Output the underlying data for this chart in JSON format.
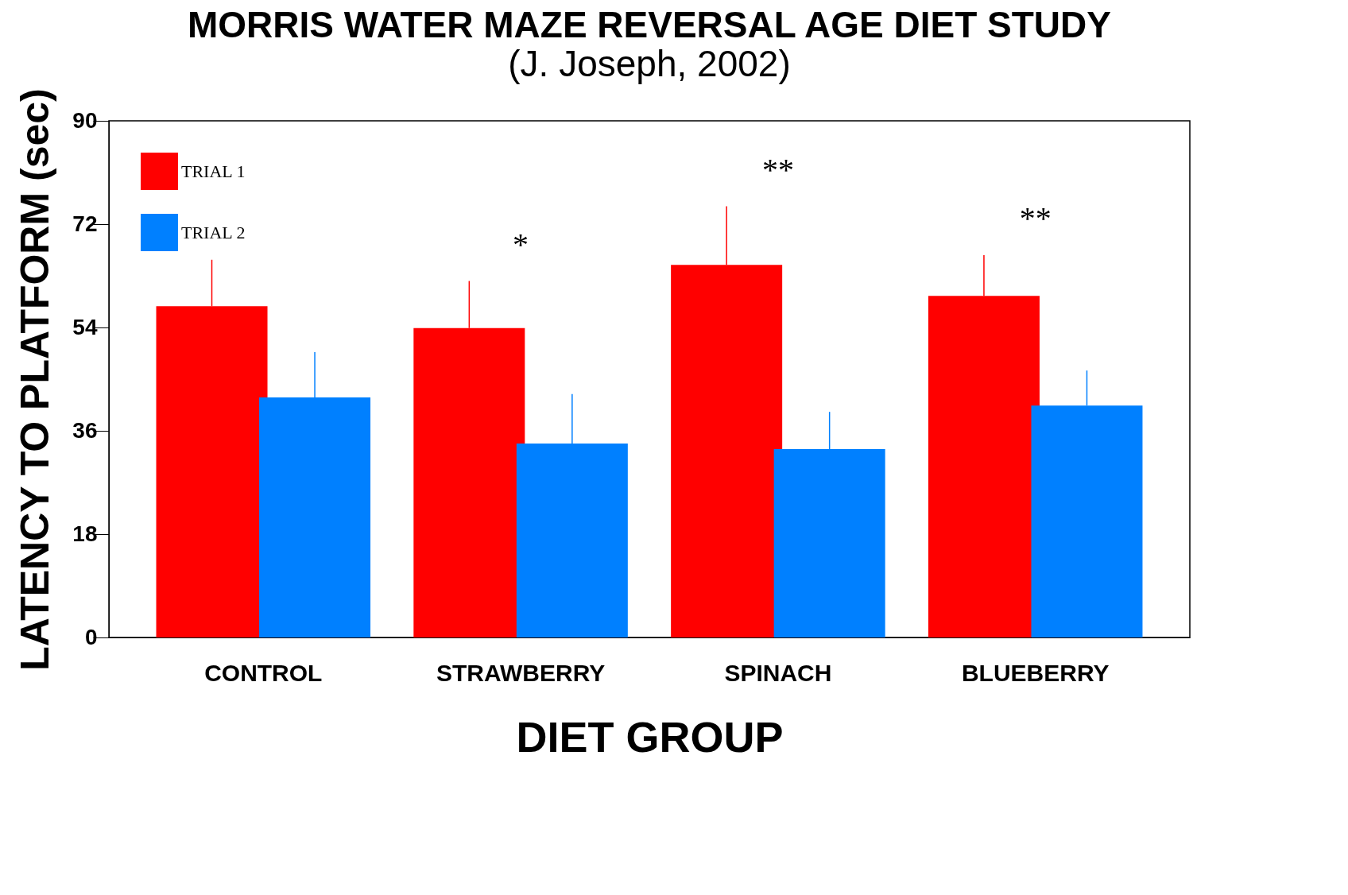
{
  "chart_data": {
    "type": "bar",
    "title": "MORRIS WATER MAZE REVERSAL AGE DIET STUDY",
    "subtitle": "(J. Joseph, 2002)",
    "xlabel": "DIET GROUP",
    "ylabel": "LATENCY TO PLATFORM (sec)",
    "categories": [
      "CONTROL",
      "STRAWBERRY",
      "SPINACH",
      "BLUEBERRY"
    ],
    "series": [
      {
        "name": "TRIAL 1",
        "color": "#ff0000",
        "values": [
          57.7,
          53.9,
          64.9,
          59.5
        ],
        "errors": [
          8.1,
          8.2,
          10.2,
          7.1
        ]
      },
      {
        "name": "TRIAL 2",
        "color": "#0080ff",
        "values": [
          41.8,
          33.8,
          32.8,
          40.4
        ],
        "errors": [
          7.9,
          8.6,
          6.5,
          6.1
        ]
      }
    ],
    "ylim": [
      0,
      90
    ],
    "yticks": [
      0,
      18,
      36,
      54,
      72,
      90
    ],
    "grid": false,
    "legend": "top left",
    "annotations": [
      "*",
      "**",
      "**"
    ]
  }
}
